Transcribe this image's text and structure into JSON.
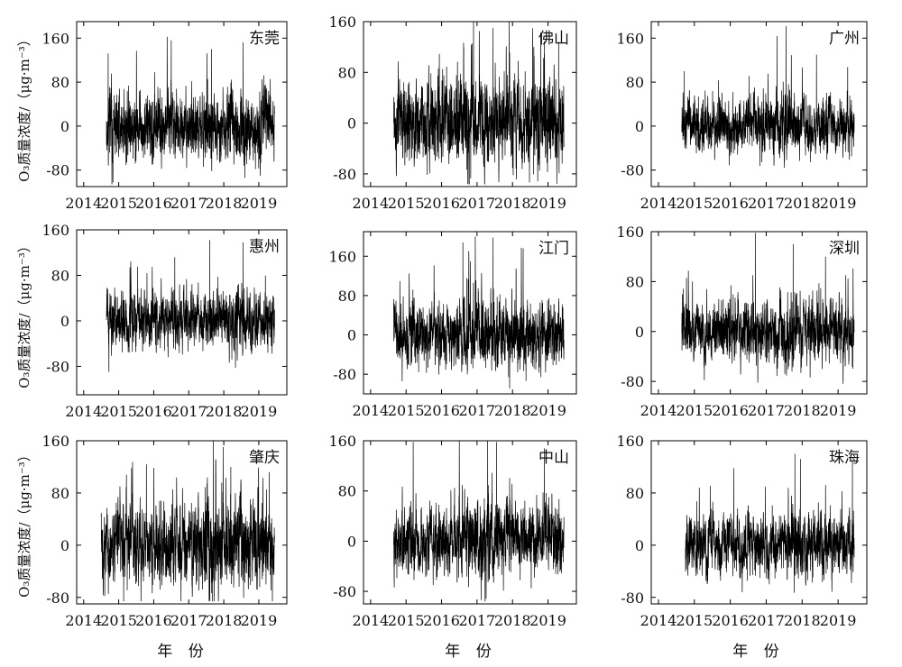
{
  "figure": {
    "ylabel": "O₃质量浓度/（μg·m⁻³）",
    "xlabel": "年 份",
    "x_ticks": [
      2014,
      2015,
      2016,
      2017,
      2018,
      2019
    ],
    "line_color": "#000000"
  },
  "chart_data": [
    {
      "type": "line",
      "title": "东莞",
      "ylim": [
        -110,
        190
      ],
      "yticks": [
        -80,
        0,
        80,
        160
      ],
      "xlim": [
        2013.8,
        2019.8
      ],
      "series_x_range": [
        2014.65,
        2019.45
      ],
      "amplitude": 42,
      "bursts": [
        {
          "at": 2018.6,
          "gain": 1.3
        }
      ],
      "spikes": [
        {
          "x": 2016.5,
          "y": 156
        },
        {
          "x": 2018.55,
          "y": 152
        },
        {
          "x": 2014.7,
          "y": 132
        },
        {
          "x": 2017.65,
          "y": 140
        }
      ]
    },
    {
      "type": "line",
      "title": "佛山",
      "ylim": [
        -100,
        160
      ],
      "yticks": [
        -80,
        0,
        80,
        160
      ],
      "xlim": [
        2013.8,
        2019.8
      ],
      "series_x_range": [
        2014.65,
        2019.45
      ],
      "amplitude": 45,
      "bursts": [
        {
          "at": 2016.8,
          "gain": 1.3
        },
        {
          "at": 2018.8,
          "gain": 1.3
        }
      ],
      "spikes": [
        {
          "x": 2016.9,
          "y": 160
        },
        {
          "x": 2017.45,
          "y": 150
        },
        {
          "x": 2019.3,
          "y": 128
        },
        {
          "x": 2018.6,
          "y": 120
        }
      ]
    },
    {
      "type": "line",
      "title": "广州",
      "ylim": [
        -110,
        190
      ],
      "yticks": [
        -80,
        0,
        80,
        160
      ],
      "xlim": [
        2013.8,
        2019.8
      ],
      "series_x_range": [
        2014.65,
        2019.45
      ],
      "amplitude": 34,
      "bursts": [
        {
          "at": 2017.5,
          "gain": 1.4
        }
      ],
      "spikes": [
        {
          "x": 2017.55,
          "y": 182
        },
        {
          "x": 2017.3,
          "y": 164
        },
        {
          "x": 2014.72,
          "y": 100
        },
        {
          "x": 2018.4,
          "y": 130
        }
      ]
    },
    {
      "type": "line",
      "title": "惠州",
      "ylim": [
        -130,
        160
      ],
      "yticks": [
        -80,
        0,
        80,
        160
      ],
      "xlim": [
        2013.8,
        2019.8
      ],
      "series_x_range": [
        2014.65,
        2019.45
      ],
      "amplitude": 34,
      "bursts": [
        {
          "at": 2018.5,
          "gain": 1.3
        }
      ],
      "spikes": [
        {
          "x": 2017.6,
          "y": 142
        },
        {
          "x": 2018.55,
          "y": 138
        },
        {
          "x": 2014.72,
          "y": -90
        },
        {
          "x": 2016.6,
          "y": 112
        }
      ]
    },
    {
      "type": "line",
      "title": "江门",
      "ylim": [
        -120,
        210
      ],
      "yticks": [
        -80,
        0,
        80,
        160
      ],
      "xlim": [
        2013.8,
        2019.8
      ],
      "series_x_range": [
        2014.65,
        2019.45
      ],
      "amplitude": 45,
      "bursts": [
        {
          "at": 2016.9,
          "gain": 1.3
        },
        {
          "at": 2018.3,
          "gain": 1.2
        }
      ],
      "spikes": [
        {
          "x": 2016.95,
          "y": 200
        },
        {
          "x": 2016.6,
          "y": 188
        },
        {
          "x": 2017.45,
          "y": 198
        },
        {
          "x": 2018.3,
          "y": 176
        }
      ]
    },
    {
      "type": "line",
      "title": "深圳",
      "ylim": [
        -100,
        160
      ],
      "yticks": [
        -80,
        0,
        80,
        160
      ],
      "xlim": [
        2013.8,
        2019.8
      ],
      "series_x_range": [
        2014.65,
        2019.45
      ],
      "amplitude": 33,
      "bursts": [
        {
          "at": 2017.6,
          "gain": 1.3
        }
      ],
      "spikes": [
        {
          "x": 2016.7,
          "y": 158
        },
        {
          "x": 2017.75,
          "y": 140
        },
        {
          "x": 2018.65,
          "y": 120
        },
        {
          "x": 2014.78,
          "y": 86
        }
      ]
    },
    {
      "type": "line",
      "title": "肇庆",
      "ylim": [
        -90,
        160
      ],
      "yticks": [
        -80,
        0,
        80,
        160
      ],
      "xlim": [
        2013.8,
        2019.8
      ],
      "series_x_range": [
        2014.5,
        2019.45
      ],
      "amplitude": 42,
      "bursts": [
        {
          "at": 2017.6,
          "gain": 1.3
        },
        {
          "at": 2018.5,
          "gain": 1.2
        }
      ],
      "spikes": [
        {
          "x": 2017.7,
          "y": 160
        },
        {
          "x": 2018.2,
          "y": 120
        },
        {
          "x": 2019.3,
          "y": 112
        },
        {
          "x": 2014.6,
          "y": -78
        }
      ]
    },
    {
      "type": "line",
      "title": "中山",
      "ylim": [
        -100,
        160
      ],
      "yticks": [
        -80,
        0,
        80,
        160
      ],
      "xlim": [
        2013.8,
        2019.8
      ],
      "series_x_range": [
        2014.65,
        2019.45
      ],
      "amplitude": 38,
      "bursts": [
        {
          "at": 2017.2,
          "gain": 1.4
        }
      ],
      "spikes": [
        {
          "x": 2017.3,
          "y": 160
        },
        {
          "x": 2017.55,
          "y": 158
        },
        {
          "x": 2015.2,
          "y": 158
        },
        {
          "x": 2018.9,
          "y": 148
        }
      ]
    },
    {
      "type": "line",
      "title": "珠海",
      "ylim": [
        -90,
        160
      ],
      "yticks": [
        -80,
        0,
        80,
        160
      ],
      "xlim": [
        2013.8,
        2019.8
      ],
      "series_x_range": [
        2014.75,
        2019.45
      ],
      "amplitude": 33,
      "bursts": [
        {
          "at": 2017.8,
          "gain": 1.3
        }
      ],
      "spikes": [
        {
          "x": 2017.8,
          "y": 140
        },
        {
          "x": 2017.95,
          "y": 132
        },
        {
          "x": 2019.4,
          "y": 130
        },
        {
          "x": 2016.1,
          "y": 118
        }
      ]
    }
  ]
}
